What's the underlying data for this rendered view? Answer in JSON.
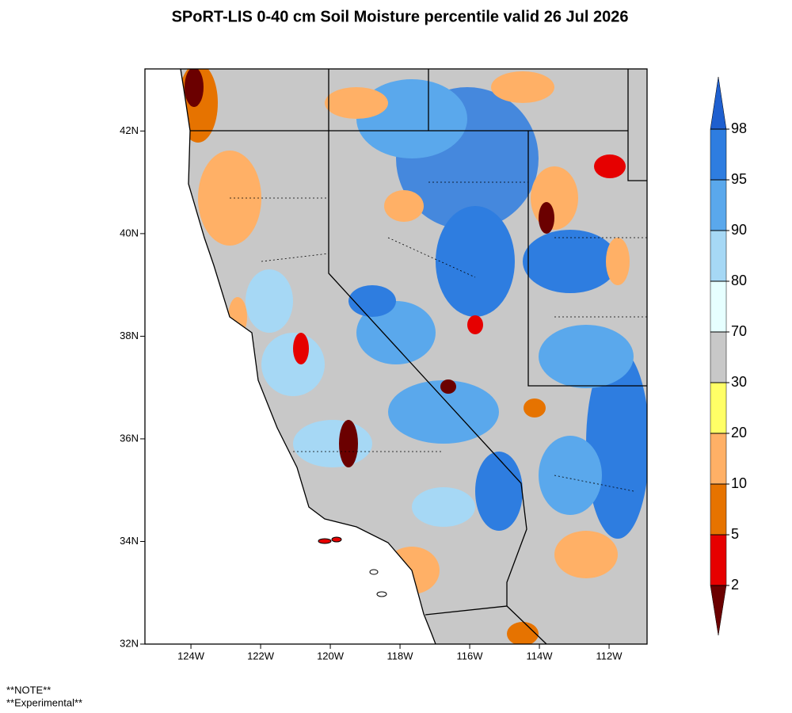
{
  "title": "SPoRT-LIS 0-40 cm Soil Moisture percentile valid 26 Jul 2026",
  "map": {
    "xlim": [
      -125.32,
      -110.91
    ],
    "ylim": [
      32,
      43.21
    ],
    "xticks": [
      {
        "value": -124,
        "label": "124W"
      },
      {
        "value": -122,
        "label": "122W"
      },
      {
        "value": -120,
        "label": "120W"
      },
      {
        "value": -118,
        "label": "118W"
      },
      {
        "value": -116,
        "label": "116W"
      },
      {
        "value": -114,
        "label": "114W"
      },
      {
        "value": -112,
        "label": "112W"
      }
    ],
    "yticks": [
      {
        "value": 32,
        "label": "32N"
      },
      {
        "value": 34,
        "label": "34N"
      },
      {
        "value": 36,
        "label": "36N"
      },
      {
        "value": 38,
        "label": "38N"
      },
      {
        "value": 40,
        "label": "40N"
      },
      {
        "value": 42,
        "label": "42N"
      }
    ]
  },
  "colorbar": {
    "levels": [
      2,
      5,
      10,
      20,
      30,
      70,
      80,
      90,
      95,
      98
    ],
    "colors": [
      "#6b0000",
      "#e60000",
      "#e67300",
      "#ffb066",
      "#ffff66",
      "#c8c8c8",
      "#e6ffff",
      "#a6d8f5",
      "#5aa8ec",
      "#2e7de0",
      "#1e5fcf"
    ]
  },
  "notes": [
    "**NOTE**",
    "**Experimental**"
  ]
}
